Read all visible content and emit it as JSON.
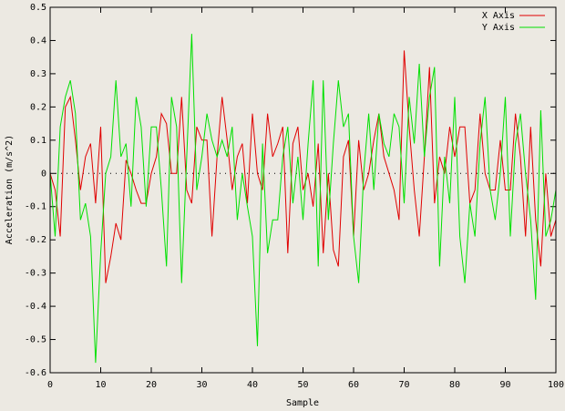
{
  "chart_data": {
    "type": "line",
    "xlabel": "Sample",
    "ylabel": "Acceleration (m/s^2)",
    "x": [
      0,
      1,
      2,
      3,
      4,
      5,
      6,
      7,
      8,
      9,
      10,
      11,
      12,
      13,
      14,
      15,
      16,
      17,
      18,
      19,
      20,
      21,
      22,
      23,
      24,
      25,
      26,
      27,
      28,
      29,
      30,
      31,
      32,
      33,
      34,
      35,
      36,
      37,
      38,
      39,
      40,
      41,
      42,
      43,
      44,
      45,
      46,
      47,
      48,
      49,
      50,
      51,
      52,
      53,
      54,
      55,
      56,
      57,
      58,
      59,
      60,
      61,
      62,
      63,
      64,
      65,
      66,
      67,
      68,
      69,
      70,
      71,
      72,
      73,
      74,
      75,
      76,
      77,
      78,
      79,
      80,
      81,
      82,
      83,
      84,
      85,
      86,
      87,
      88,
      89,
      90,
      91,
      92,
      93,
      94,
      95,
      96,
      97,
      98,
      99,
      100
    ],
    "series": [
      {
        "name": "X Axis",
        "color": "#e00000",
        "values": [
          0,
          -0.05,
          -0.19,
          0.2,
          0.23,
          0.1,
          -0.05,
          0.05,
          0.09,
          -0.09,
          0.14,
          -0.33,
          -0.25,
          -0.15,
          -0.2,
          0.04,
          0,
          -0.05,
          -0.09,
          -0.09,
          0,
          0.05,
          0.18,
          0.15,
          0,
          0,
          0.23,
          -0.05,
          -0.09,
          0.14,
          0.1,
          0.1,
          -0.19,
          0.05,
          0.23,
          0.1,
          -0.05,
          0.05,
          0.09,
          -0.09,
          0.18,
          0,
          -0.05,
          0.18,
          0.05,
          0.09,
          0.14,
          -0.24,
          0.09,
          0.14,
          -0.05,
          0,
          -0.1,
          0.09,
          -0.24,
          0,
          -0.23,
          -0.28,
          0.05,
          0.1,
          -0.19,
          0.1,
          -0.05,
          0,
          0.1,
          0.18,
          0.05,
          0,
          -0.05,
          -0.14,
          0.37,
          0.14,
          -0.05,
          -0.19,
          0.05,
          0.32,
          -0.09,
          0.05,
          0,
          0.14,
          0.05,
          0.14,
          0.14,
          -0.09,
          -0.05,
          0.18,
          0,
          -0.05,
          -0.05,
          0.1,
          -0.05,
          -0.05,
          0.18,
          0.05,
          -0.19,
          0.14,
          -0.14,
          -0.28,
          0,
          -0.19,
          -0.14
        ]
      },
      {
        "name": "Y Axis",
        "color": "#00e000",
        "values": [
          0,
          -0.19,
          0.14,
          0.23,
          0.28,
          0.18,
          -0.14,
          -0.09,
          -0.19,
          -0.57,
          -0.24,
          0,
          0.05,
          0.28,
          0.05,
          0.09,
          -0.1,
          0.23,
          0.14,
          -0.1,
          0.14,
          0.14,
          -0.05,
          -0.28,
          0.23,
          0.14,
          -0.33,
          0.05,
          0.42,
          -0.05,
          0.05,
          0.18,
          0.1,
          0.05,
          0.1,
          0.05,
          0.14,
          -0.14,
          0,
          -0.1,
          -0.19,
          -0.52,
          0.09,
          -0.24,
          -0.14,
          -0.14,
          0.05,
          0.14,
          -0.09,
          0.05,
          -0.14,
          0.09,
          0.28,
          -0.28,
          0.28,
          -0.14,
          0.09,
          0.28,
          0.14,
          0.18,
          -0.19,
          -0.33,
          0,
          0.18,
          -0.05,
          0.18,
          0.09,
          0.05,
          0.18,
          0.14,
          -0.09,
          0.23,
          0.09,
          0.33,
          0.05,
          0.23,
          0.32,
          -0.28,
          0.05,
          -0.09,
          0.23,
          -0.19,
          -0.33,
          -0.09,
          -0.19,
          0.09,
          0.23,
          -0.05,
          -0.14,
          0,
          0.23,
          -0.19,
          0.09,
          0.18,
          0,
          -0.14,
          -0.38,
          0.19,
          -0.19,
          -0.14,
          -0.05
        ]
      }
    ],
    "xlim": [
      0,
      100
    ],
    "xticks": [
      0,
      10,
      20,
      30,
      40,
      50,
      60,
      70,
      80,
      90,
      100
    ],
    "ylim": [
      -0.6,
      0.5
    ],
    "yticks": [
      -0.6,
      -0.5,
      -0.4,
      -0.3,
      -0.2,
      -0.1,
      0,
      0.1,
      0.2,
      0.3,
      0.4,
      0.5
    ],
    "zero_axis": true,
    "legend": "top-right"
  }
}
